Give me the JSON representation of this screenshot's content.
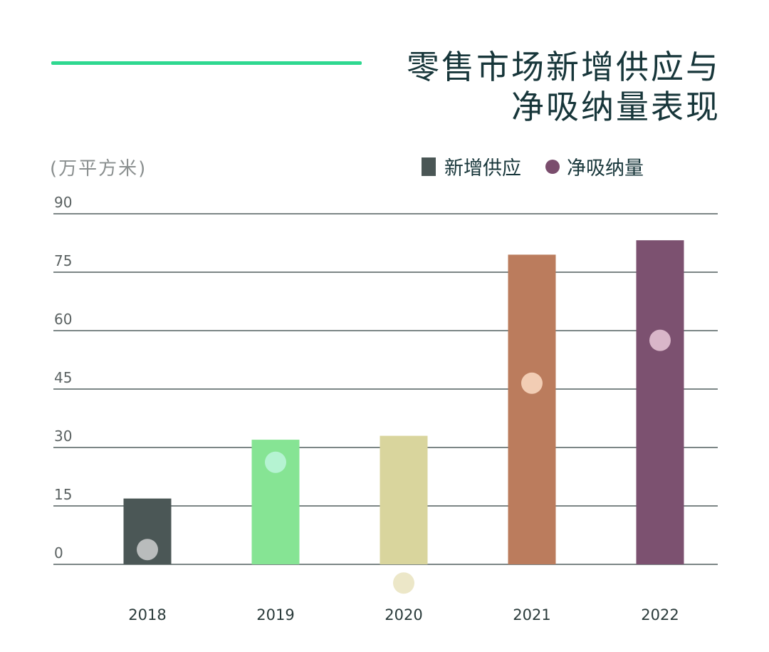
{
  "title_lines": [
    "零售市场新增供应与",
    "净吸纳量表现"
  ],
  "unit_label": "(万平方米)",
  "legend": {
    "supply_label": "新增供应",
    "absorption_label": "净吸纳量"
  },
  "colors": {
    "accent_line": "#2fd890",
    "gridline": "#2f3f3f",
    "legend_supply": "#4a5655",
    "legend_absorption": "#7a4d6d"
  },
  "chart_data": {
    "type": "bar",
    "title": "零售市场新增供应与净吸纳量表现",
    "ylabel": "(万平方米)",
    "ylim": [
      0,
      90
    ],
    "yticks": [
      90,
      75,
      60,
      45,
      30,
      15,
      0
    ],
    "grid": true,
    "legend_placement": "top-right",
    "categories": [
      "2018",
      "2019",
      "2020",
      "2021",
      "2022"
    ],
    "series": [
      {
        "name": "新增供应",
        "type": "bar",
        "values": [
          16.9,
          32,
          33,
          79.5,
          83.2
        ],
        "colors": [
          "#4b5756",
          "#86e494",
          "#d9d59d",
          "#bb7c5d",
          "#7c5170"
        ]
      },
      {
        "name": "净吸纳量",
        "type": "scatter",
        "values": [
          3.8,
          26.2,
          -4.8,
          46.5,
          57.5
        ],
        "colors": [
          "#b9bcbc",
          "#b5f3d2",
          "#ece7c8",
          "#f2cdb4",
          "#d9b6c9"
        ]
      }
    ]
  }
}
